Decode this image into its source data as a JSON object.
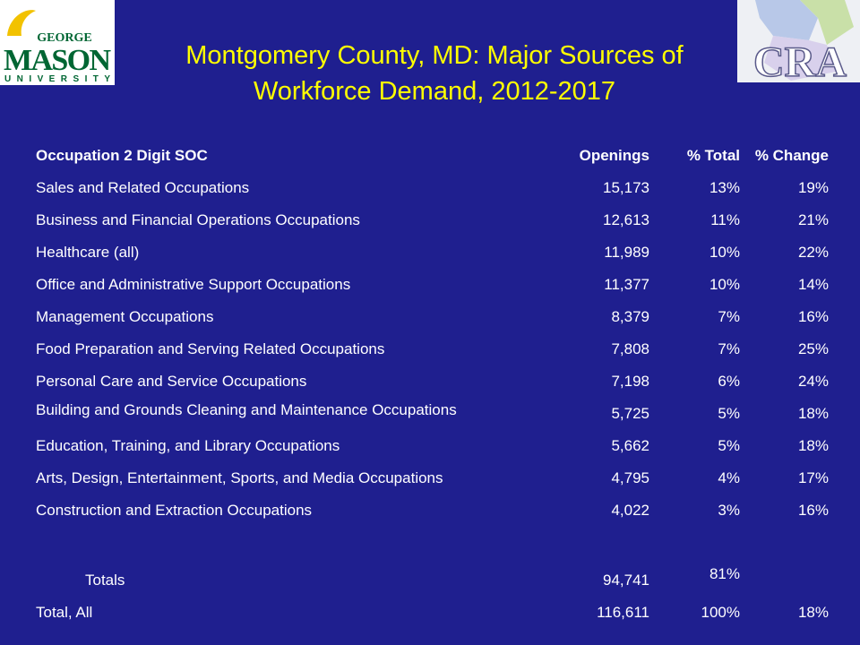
{
  "header": {
    "title": "Montgomery County, MD: Major Sources of Workforce Demand, 2012-2017"
  },
  "logos": [
    {
      "top": "GEORGE",
      "main": "MASON",
      "bottom": "UNIVERSITY"
    },
    {
      "text": "CRA"
    }
  ],
  "table": {
    "columns": [
      "Occupation 2 Digit SOC",
      "Openings",
      "% Total",
      "% Change"
    ],
    "rows": [
      [
        "Sales and Related Occupations",
        "15,173",
        "13%",
        "19%"
      ],
      [
        "Business and Financial Operations Occupations",
        "12,613",
        "11%",
        "21%"
      ],
      [
        "Healthcare (all)",
        "11,989",
        "10%",
        "22%"
      ],
      [
        "Office and Administrative Support Occupations",
        "11,377",
        "10%",
        "14%"
      ],
      [
        "Management Occupations",
        "8,379",
        "7%",
        "16%"
      ],
      [
        "Food Preparation and Serving Related Occupations",
        "7,808",
        "7%",
        "25%"
      ],
      [
        "Personal Care and Service Occupations",
        "7,198",
        "6%",
        "24%"
      ],
      [
        "Building and Grounds Cleaning and Maintenance Occupations",
        "5,725",
        "5%",
        "18%"
      ],
      [
        "Education, Training, and Library Occupations",
        "5,662",
        "5%",
        "18%"
      ],
      [
        "Arts, Design, Entertainment, Sports, and Media Occupations",
        "4,795",
        "4%",
        "17%"
      ],
      [
        "Construction and Extraction Occupations",
        "4,022",
        "3%",
        "16%"
      ]
    ],
    "totals": [
      [
        "Totals",
        "94,741",
        "81%"
      ],
      [
        "Total, All",
        "116,611",
        "100%",
        "18%"
      ]
    ]
  }
}
